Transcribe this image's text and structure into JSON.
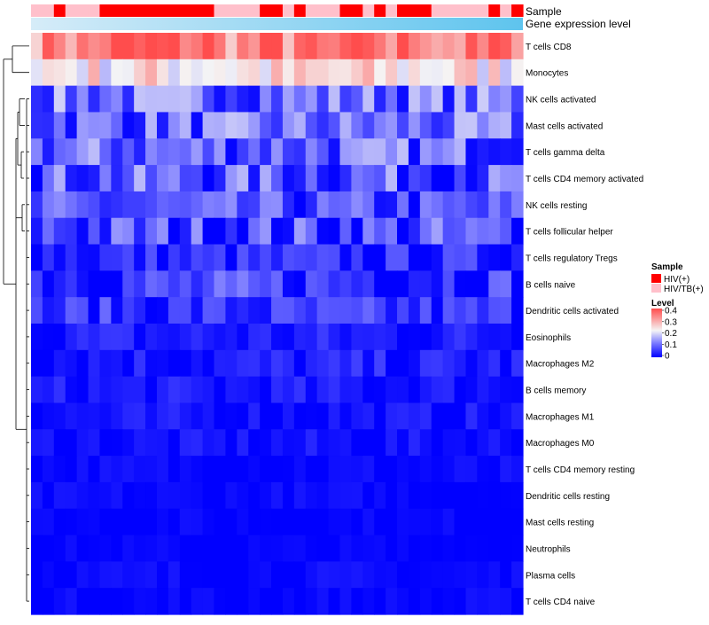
{
  "chart_data": {
    "type": "heatmap",
    "annotation_rows": [
      "Sample",
      "Gene expression level"
    ],
    "row_labels": [
      "T cells CD8",
      "Monocytes",
      "NK cells activated",
      "Mast cells activated",
      "T cells gamma delta",
      "T cells CD4 memory activated",
      "NK cells resting",
      "T cells follicular helper",
      "T cells regulatory  Tregs",
      "B cells naive",
      "Dendritic cells activated",
      "Eosinophils",
      "Macrophages M2",
      "B cells memory",
      "Macrophages M1",
      "Macrophages M0",
      "T cells CD4 memory resting",
      "Dendritic cells resting",
      "Mast cells resting",
      "Neutrophils",
      "Plasma cells",
      "T cells CD4 naive"
    ],
    "sample_groups": [
      "HIV/TB(+)",
      "HIV/TB(+)",
      "HIV(+)",
      "HIV/TB(+)",
      "HIV/TB(+)",
      "HIV/TB(+)",
      "HIV(+)",
      "HIV(+)",
      "HIV(+)",
      "HIV(+)",
      "HIV(+)",
      "HIV(+)",
      "HIV(+)",
      "HIV(+)",
      "HIV(+)",
      "HIV(+)",
      "HIV/TB(+)",
      "HIV/TB(+)",
      "HIV/TB(+)",
      "HIV/TB(+)",
      "HIV(+)",
      "HIV(+)",
      "HIV/TB(+)",
      "HIV(+)",
      "HIV/TB(+)",
      "HIV/TB(+)",
      "HIV/TB(+)",
      "HIV(+)",
      "HIV(+)",
      "HIV/TB(+)",
      "HIV(+)",
      "HIV/TB(+)",
      "HIV(+)",
      "HIV(+)",
      "HIV(+)",
      "HIV/TB(+)",
      "HIV/TB(+)",
      "HIV/TB(+)",
      "HIV/TB(+)",
      "HIV/TB(+)",
      "HIV(+)",
      "HIV/TB(+)",
      "HIV(+)"
    ],
    "mean_levels": [
      0.32,
      0.22,
      0.09,
      0.08,
      0.08,
      0.07,
      0.05,
      0.055,
      0.03,
      0.045,
      0.035,
      0.02,
      0.02,
      0.015,
      0.012,
      0.01,
      0.005,
      0.004,
      0.002,
      0.001,
      0.005,
      0.003
    ],
    "legend": {
      "sample_title": "Sample",
      "sample_entries": [
        {
          "label": "HIV(+)",
          "color": "#ff0000"
        },
        {
          "label": "HIV/TB(+)",
          "color": "#ffc0cb"
        }
      ],
      "level_title": "Level",
      "level_ticks": [
        "0.4",
        "0.3",
        "0.2",
        "0.1",
        "0"
      ],
      "level_values": [
        0.4,
        0.3,
        0.2,
        0.1,
        0
      ],
      "level_colors": [
        "#0000ff",
        "#8080ff",
        "#f5f5f5",
        "#ff4d4d"
      ]
    }
  },
  "colors": {
    "expression_bar_start": "#d6ecf8",
    "expression_bar_end": "#5ec4ee",
    "dendrogram": "#000000"
  }
}
